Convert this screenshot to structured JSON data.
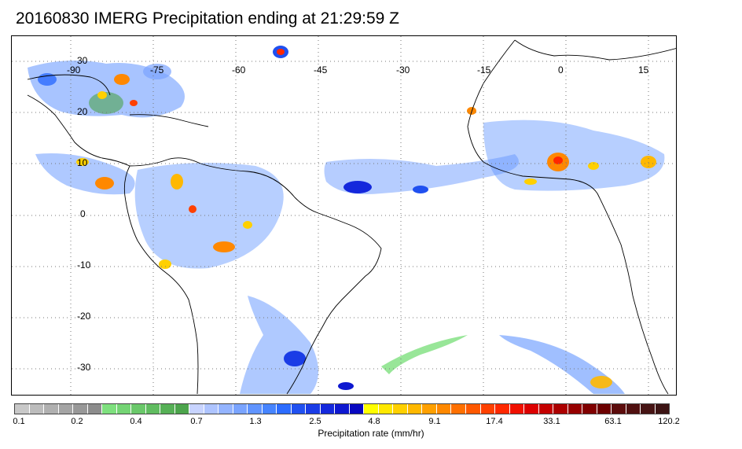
{
  "title": "20160830 IMERG Precipitation ending at 21:29:59 Z",
  "map": {
    "lon_labels": [
      "-90",
      "-75",
      "-60",
      "-45",
      "-30",
      "-15",
      "0",
      "15"
    ],
    "lat_labels": [
      "30",
      "20",
      "10",
      "0",
      "-10",
      "-20",
      "-30"
    ],
    "gridlines": "dotted"
  },
  "colorbar": {
    "label": "Precipitation rate (mm/hr)",
    "tick_labels": [
      "0.1",
      "0.2",
      "0.4",
      "0.7",
      "1.3",
      "2.5",
      "4.8",
      "9.1",
      "17.4",
      "33.1",
      "63.1",
      "120.2"
    ],
    "colors": [
      "#c8c8c8",
      "#bcbcbc",
      "#b0b0b0",
      "#a4a4a4",
      "#989898",
      "#8c8c8c",
      "#7ee07e",
      "#74d474",
      "#6ac86a",
      "#60bc60",
      "#56b056",
      "#4ca44c",
      "#c8d4ff",
      "#aec4ff",
      "#94b4ff",
      "#7aa4ff",
      "#6094ff",
      "#4684ff",
      "#2c6cff",
      "#2050f0",
      "#1a3ce6",
      "#1428dc",
      "#0e18d0",
      "#0808c0",
      "#ffff00",
      "#ffe800",
      "#ffd000",
      "#ffb800",
      "#ffa000",
      "#ff8800",
      "#ff7000",
      "#ff5800",
      "#ff4000",
      "#ff2800",
      "#f01000",
      "#dc0000",
      "#c40000",
      "#ac0000",
      "#960000",
      "#800000",
      "#6c0000",
      "#5c0c0c",
      "#501010",
      "#461414",
      "#3c1414"
    ]
  }
}
